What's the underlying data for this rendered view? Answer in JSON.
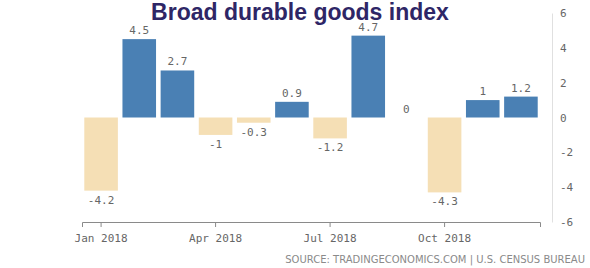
{
  "chart_data": {
    "type": "bar",
    "title": "Broad durable goods index",
    "source": "SOURCE: TRADINGECONOMICS.COM | U.S. CENSUS BUREAU",
    "categories": [
      "Jan 2018",
      null,
      null,
      "Apr 2018",
      null,
      null,
      "Jul 2018",
      null,
      null,
      "Oct 2018",
      null,
      null
    ],
    "values": [
      -4.2,
      4.5,
      2.7,
      -1,
      -0.3,
      0.9,
      -1.2,
      4.7,
      0,
      -4.3,
      1,
      1.2
    ],
    "colors": [
      "#f5dfb5",
      "#4a80b4",
      "#4a80b4",
      "#f5dfb5",
      "#f5dfb5",
      "#4a80b4",
      "#f5dfb5",
      "#4a80b4",
      "#4a80b4",
      "#f5dfb5",
      "#4a80b4",
      "#4a80b4"
    ],
    "ylim": [
      -6,
      6
    ],
    "yticks": [
      -6,
      -4,
      -2,
      0,
      2,
      4,
      6
    ],
    "grid": false,
    "data_labels": true
  }
}
